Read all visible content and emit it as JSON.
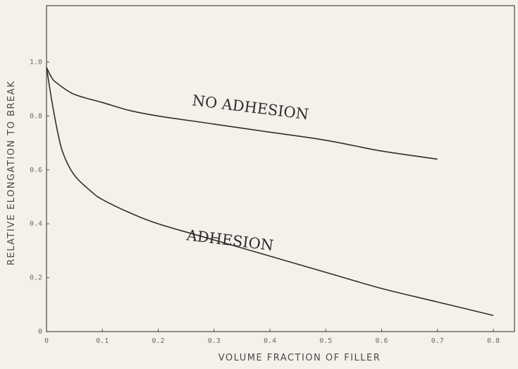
{
  "chart_data": {
    "type": "line",
    "xlabel": "VOLUME FRACTION OF FILLER",
    "ylabel": "RELATIVE ELONGATION TO BREAK",
    "xlim": [
      0,
      0.8
    ],
    "ylim": [
      0,
      1.05
    ],
    "x_ticks": [
      "0",
      "0.1",
      "0.2",
      "0.3",
      "0.4",
      "0.5",
      "0.6",
      "0.7",
      "0.8"
    ],
    "y_ticks": [
      "0",
      "0.2",
      "0.4",
      "0.6",
      "0.8",
      "1.0"
    ],
    "grid": false,
    "series": [
      {
        "name": "NO ADHESION",
        "x": [
          0,
          0.01,
          0.02,
          0.05,
          0.1,
          0.15,
          0.2,
          0.3,
          0.4,
          0.5,
          0.6,
          0.7
        ],
        "y": [
          0.98,
          0.94,
          0.92,
          0.88,
          0.85,
          0.82,
          0.8,
          0.77,
          0.74,
          0.71,
          0.67,
          0.64
        ]
      },
      {
        "name": "ADHESION",
        "x": [
          0,
          0.01,
          0.02,
          0.03,
          0.05,
          0.08,
          0.1,
          0.15,
          0.2,
          0.3,
          0.4,
          0.5,
          0.6,
          0.7,
          0.8
        ],
        "y": [
          0.98,
          0.85,
          0.74,
          0.66,
          0.58,
          0.52,
          0.49,
          0.44,
          0.4,
          0.34,
          0.28,
          0.22,
          0.16,
          0.11,
          0.06
        ]
      }
    ],
    "annotations": [
      {
        "text": "NO ADHESION",
        "x": 0.26,
        "y": 0.84,
        "rotate": 7
      },
      {
        "text": "ADHESION",
        "x": 0.25,
        "y": 0.34,
        "rotate": 7
      }
    ]
  }
}
